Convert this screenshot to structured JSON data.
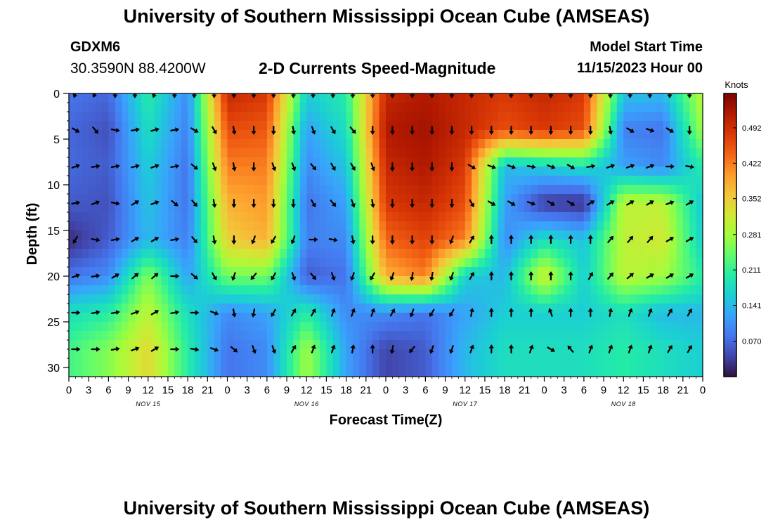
{
  "header": {
    "title": "University of Southern Mississippi Ocean Cube (AMSEAS)",
    "station": "GDXM6",
    "coords": "30.3590N  88.4200W",
    "subtitle": "2-D Currents Speed-Magnitude",
    "model_start_label": "Model Start Time",
    "model_start_value": "11/15/2023 Hour 00"
  },
  "footer": {
    "title": "University of Southern Mississippi Ocean Cube (AMSEAS)"
  },
  "colors": {
    "scale": [
      "#30123b",
      "#4145ab",
      "#4675ed",
      "#39a2fc",
      "#1bcfd4",
      "#24eca6",
      "#61fc6c",
      "#a4fc3b",
      "#d1e834",
      "#f3c63a",
      "#fe9b2d",
      "#f36315",
      "#d93806",
      "#b11901",
      "#7a0403"
    ]
  },
  "chart_data": {
    "type": "heatmap",
    "title": "2-D Currents Speed-Magnitude",
    "xlabel": "Forecast Time(Z)",
    "ylabel": "Depth (ft)",
    "x_hours": [
      0,
      96
    ],
    "ylim": [
      0,
      31
    ],
    "y_ticks": [
      0,
      5,
      10,
      15,
      20,
      25,
      30
    ],
    "x_tick_labels": [
      "0",
      "3",
      "6",
      "9",
      "12",
      "15",
      "18",
      "21",
      "0",
      "3",
      "6",
      "9",
      "12",
      "15",
      "18",
      "21",
      "0",
      "3",
      "6",
      "9",
      "12",
      "15",
      "18",
      "21",
      "0",
      "3",
      "6",
      "9",
      "12",
      "15",
      "18",
      "21",
      "0"
    ],
    "date_labels": [
      {
        "hour": 12,
        "label": "NOV 15"
      },
      {
        "hour": 36,
        "label": "NOV 16"
      },
      {
        "hour": 60,
        "label": "NOV 17"
      },
      {
        "hour": 84,
        "label": "NOV 18"
      }
    ],
    "colorbar": {
      "unit": "Knots",
      "min": 0.0,
      "max": 0.56,
      "ticks": [
        0.07,
        0.141,
        0.211,
        0.281,
        0.352,
        0.422,
        0.492
      ]
    },
    "depths": [
      0,
      4,
      8,
      12,
      16,
      20,
      24,
      28
    ],
    "speed_grid_hours": [
      0,
      6,
      12,
      18,
      24,
      30,
      36,
      42,
      48,
      54,
      60,
      66,
      72,
      78,
      84,
      90,
      96
    ],
    "speed": [
      [
        0.08,
        0.07,
        0.2,
        0.1,
        0.5,
        0.48,
        0.16,
        0.2,
        0.5,
        0.52,
        0.5,
        0.48,
        0.5,
        0.48,
        0.15,
        0.14,
        0.3
      ],
      [
        0.07,
        0.05,
        0.18,
        0.09,
        0.46,
        0.45,
        0.12,
        0.18,
        0.52,
        0.53,
        0.5,
        0.46,
        0.48,
        0.46,
        0.09,
        0.08,
        0.28
      ],
      [
        0.07,
        0.06,
        0.16,
        0.08,
        0.42,
        0.42,
        0.1,
        0.15,
        0.5,
        0.52,
        0.48,
        0.14,
        0.16,
        0.18,
        0.12,
        0.1,
        0.2
      ],
      [
        0.06,
        0.05,
        0.15,
        0.08,
        0.38,
        0.4,
        0.08,
        0.12,
        0.48,
        0.5,
        0.46,
        0.12,
        0.03,
        0.02,
        0.3,
        0.3,
        0.15
      ],
      [
        0.02,
        0.06,
        0.14,
        0.09,
        0.35,
        0.38,
        0.09,
        0.1,
        0.44,
        0.47,
        0.42,
        0.1,
        0.18,
        0.15,
        0.3,
        0.32,
        0.16
      ],
      [
        0.08,
        0.1,
        0.26,
        0.12,
        0.25,
        0.25,
        0.06,
        0.08,
        0.38,
        0.42,
        0.16,
        0.14,
        0.32,
        0.16,
        0.3,
        0.28,
        0.2
      ],
      [
        0.18,
        0.2,
        0.3,
        0.18,
        0.1,
        0.12,
        0.2,
        0.1,
        0.1,
        0.08,
        0.12,
        0.16,
        0.16,
        0.16,
        0.18,
        0.14,
        0.14
      ],
      [
        0.22,
        0.26,
        0.34,
        0.2,
        0.08,
        0.1,
        0.28,
        0.12,
        0.04,
        0.06,
        0.14,
        0.18,
        0.18,
        0.18,
        0.2,
        0.18,
        0.16
      ]
    ],
    "arrow_hours": [
      1,
      4,
      7,
      10,
      13,
      16,
      19,
      22,
      25,
      28,
      31,
      34,
      37,
      40,
      43,
      46,
      49,
      52,
      55,
      58,
      61,
      64,
      67,
      70,
      73,
      76,
      79,
      82,
      85,
      88,
      91,
      94,
      97
    ],
    "arrow_dir_deg": [
      [
        200,
        210,
        180,
        180,
        200,
        180,
        180,
        180,
        180,
        180,
        180,
        180,
        180,
        180,
        180,
        180,
        180,
        180,
        180,
        180,
        180,
        180,
        180,
        180,
        180,
        180,
        180,
        180,
        180,
        180,
        180,
        180,
        200
      ],
      [
        120,
        140,
        100,
        80,
        75,
        80,
        120,
        150,
        170,
        180,
        180,
        170,
        160,
        150,
        140,
        180,
        180,
        180,
        180,
        180,
        180,
        180,
        180,
        180,
        180,
        180,
        180,
        170,
        120,
        110,
        120,
        180,
        200
      ],
      [
        70,
        80,
        80,
        75,
        70,
        80,
        130,
        160,
        170,
        180,
        160,
        160,
        140,
        150,
        150,
        160,
        180,
        180,
        180,
        180,
        120,
        110,
        110,
        100,
        110,
        120,
        80,
        70,
        70,
        70,
        90,
        100,
        120
      ],
      [
        80,
        70,
        100,
        60,
        70,
        130,
        140,
        170,
        180,
        180,
        180,
        180,
        150,
        140,
        160,
        170,
        180,
        180,
        180,
        180,
        150,
        120,
        120,
        110,
        120,
        120,
        60,
        60,
        60,
        60,
        70,
        60,
        110
      ],
      [
        210,
        100,
        80,
        60,
        60,
        80,
        140,
        170,
        180,
        200,
        210,
        200,
        90,
        100,
        170,
        180,
        180,
        180,
        180,
        200,
        30,
        0,
        0,
        0,
        0,
        0,
        0,
        40,
        40,
        40,
        60,
        60,
        60
      ],
      [
        70,
        80,
        60,
        50,
        50,
        90,
        130,
        150,
        200,
        220,
        210,
        160,
        140,
        160,
        200,
        210,
        200,
        190,
        190,
        200,
        30,
        0,
        0,
        0,
        0,
        0,
        30,
        40,
        50,
        60,
        60,
        60,
        60
      ],
      [
        90,
        80,
        80,
        70,
        60,
        80,
        90,
        110,
        170,
        190,
        210,
        30,
        30,
        20,
        20,
        20,
        30,
        200,
        210,
        210,
        10,
        0,
        0,
        0,
        340,
        0,
        0,
        10,
        20,
        20,
        30,
        30,
        30
      ],
      [
        90,
        90,
        80,
        70,
        60,
        90,
        100,
        110,
        130,
        160,
        160,
        30,
        20,
        20,
        10,
        0,
        190,
        220,
        200,
        200,
        20,
        0,
        0,
        20,
        120,
        320,
        20,
        20,
        20,
        20,
        30,
        30,
        120
      ]
    ]
  }
}
